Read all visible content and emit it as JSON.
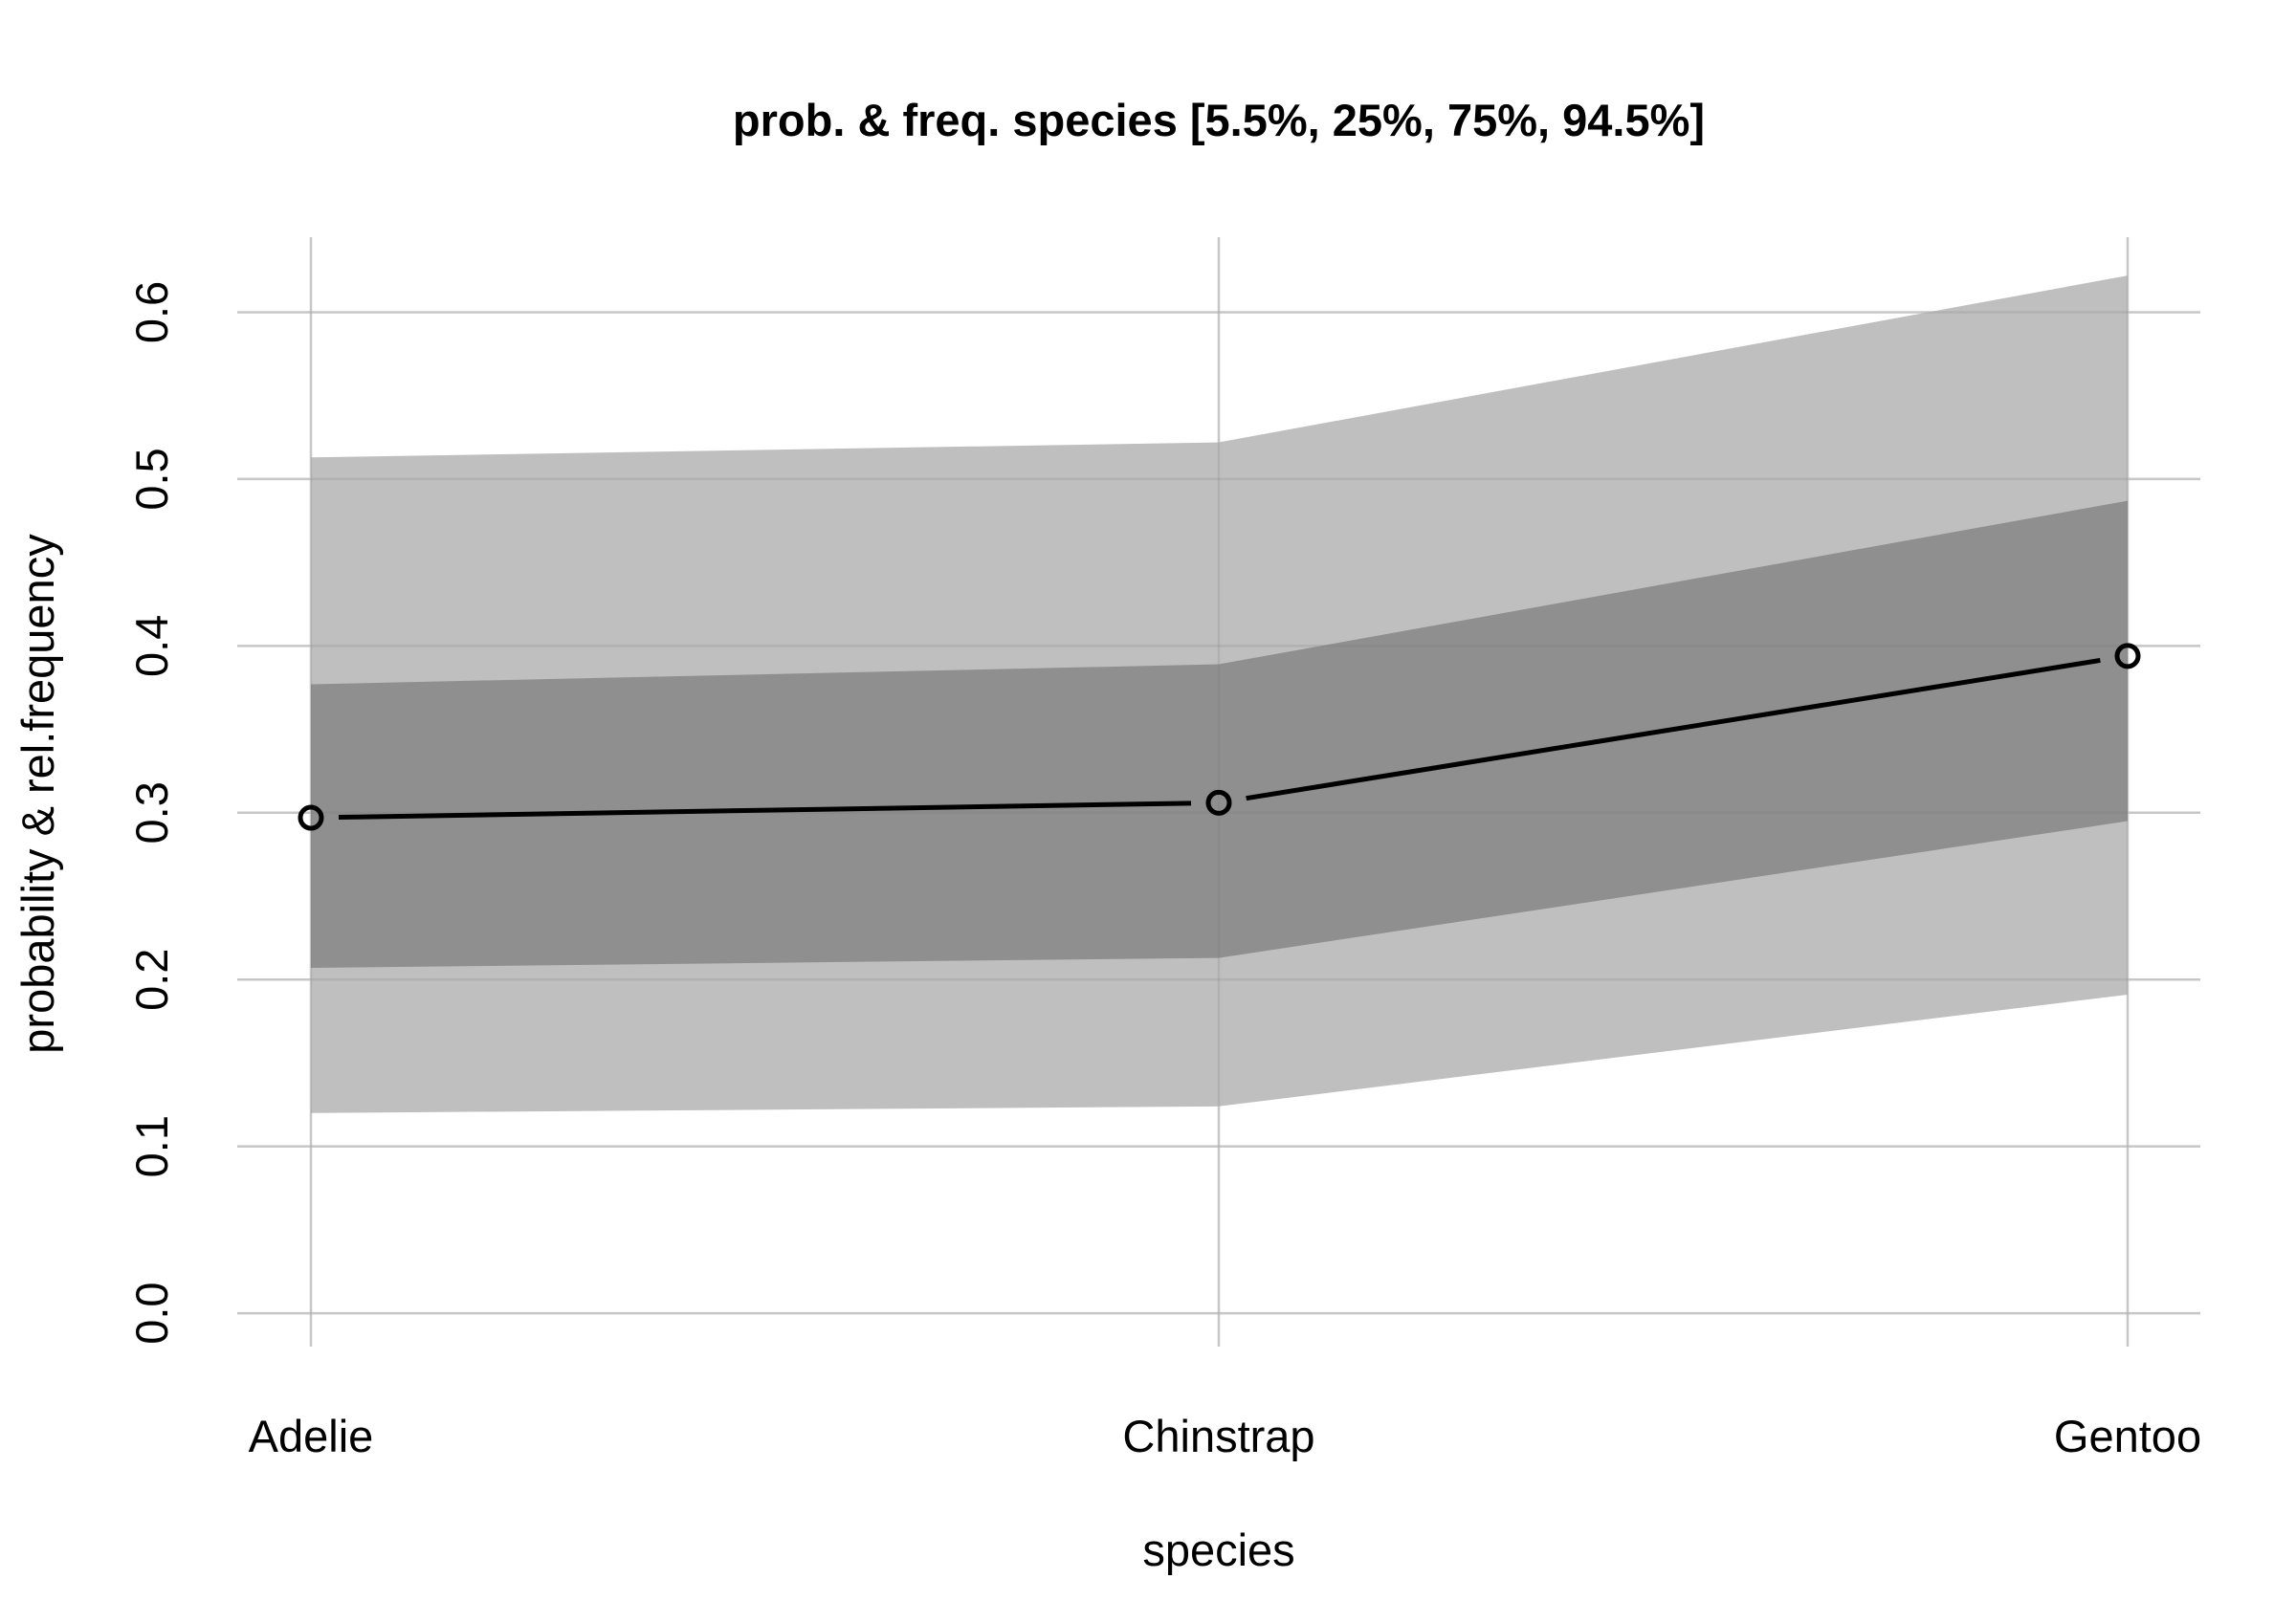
{
  "chart_data": {
    "type": "line",
    "title": "prob. & freq.  species  [5.5%, 25%, 75%, 94.5%]",
    "xlabel": "species",
    "ylabel": "probability & rel.frequency",
    "categories": [
      "Adelie",
      "Chinstrap",
      "Gentoo"
    ],
    "y_ticks": [
      "0.0",
      "0.1",
      "0.2",
      "0.3",
      "0.4",
      "0.5",
      "0.6"
    ],
    "ylim": [
      -0.02,
      0.645
    ],
    "grid": true,
    "legend": "none",
    "series": [
      {
        "values": [
          0.297,
          0.306,
          0.394
        ],
        "color": "#000000",
        "markers": "open-circle"
      }
    ],
    "intervals": [
      {
        "range": "5.5%-94.5%",
        "lower": [
          0.12,
          0.124,
          0.191
        ],
        "upper": [
          0.513,
          0.522,
          0.622
        ],
        "color": "#bfbfbf"
      },
      {
        "range": "25%-75%",
        "lower": [
          0.207,
          0.213,
          0.295
        ],
        "upper": [
          0.377,
          0.389,
          0.487
        ],
        "color": "#8f8f8f"
      }
    ],
    "gridline_color": "#d9d9d9"
  }
}
